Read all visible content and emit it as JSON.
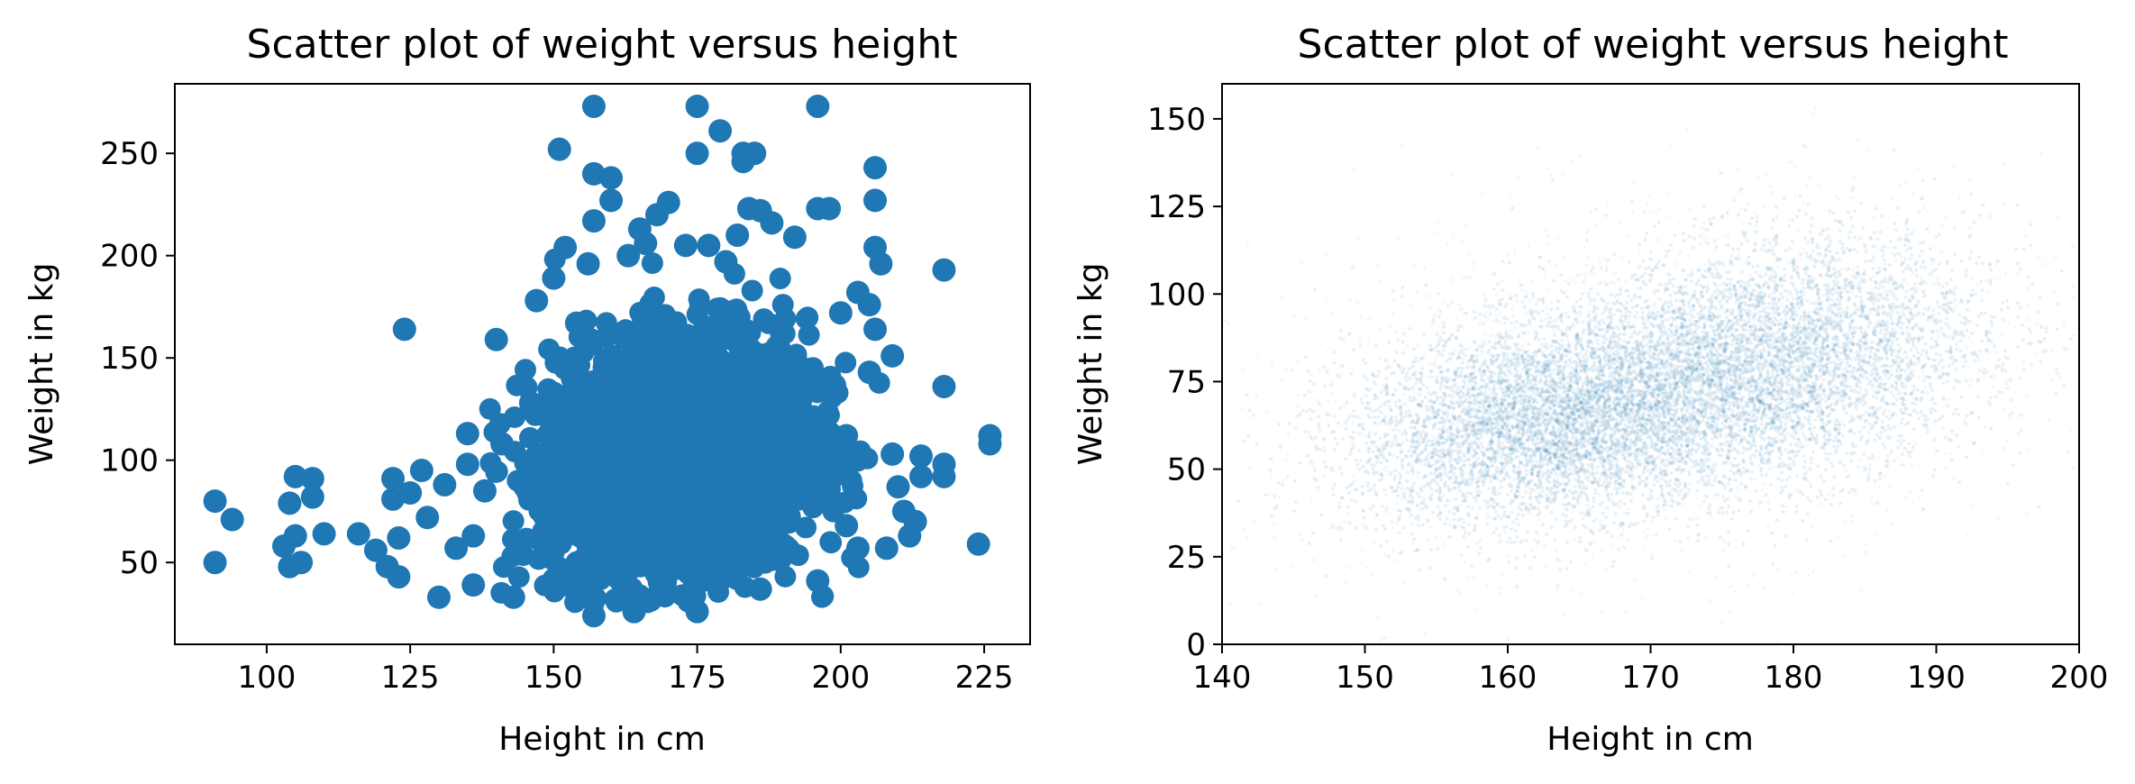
{
  "chart_data": [
    {
      "type": "scatter",
      "title": "Scatter plot of weight versus height",
      "xlabel": "Height in cm",
      "ylabel": "Weight in kg",
      "xlim": [
        84,
        233
      ],
      "ylim": [
        10,
        284
      ],
      "xticks": [
        100,
        125,
        150,
        175,
        200,
        225
      ],
      "yticks": [
        50,
        100,
        150,
        200,
        250
      ],
      "grid": false,
      "color": "#1f77b4",
      "marker": "large opaque circles",
      "points": [
        [
          91,
          80
        ],
        [
          91,
          50
        ],
        [
          94,
          71
        ],
        [
          103,
          58
        ],
        [
          104,
          48
        ],
        [
          104,
          79
        ],
        [
          105,
          92
        ],
        [
          105,
          63
        ],
        [
          106,
          50
        ],
        [
          108,
          91
        ],
        [
          108,
          82
        ],
        [
          110,
          64
        ],
        [
          116,
          64
        ],
        [
          119,
          56
        ],
        [
          121,
          48
        ],
        [
          122,
          91
        ],
        [
          122,
          81
        ],
        [
          123,
          62
        ],
        [
          123,
          43
        ],
        [
          124,
          164
        ],
        [
          125,
          84
        ],
        [
          127,
          95
        ],
        [
          128,
          72
        ],
        [
          130,
          33
        ],
        [
          131,
          88
        ],
        [
          133,
          57
        ],
        [
          135,
          113
        ],
        [
          135,
          98
        ],
        [
          136,
          63
        ],
        [
          136,
          39
        ],
        [
          138,
          85
        ],
        [
          140,
          159
        ],
        [
          141,
          108
        ],
        [
          143,
          33
        ],
        [
          146,
          128
        ],
        [
          147,
          178
        ],
        [
          149,
          121
        ],
        [
          150,
          189
        ],
        [
          151,
          252
        ],
        [
          152,
          204
        ],
        [
          152,
          145
        ],
        [
          154,
          167
        ],
        [
          156,
          196
        ],
        [
          157,
          273
        ],
        [
          157,
          240
        ],
        [
          157,
          217
        ],
        [
          157,
          24
        ],
        [
          160,
          238
        ],
        [
          160,
          227
        ],
        [
          163,
          200
        ],
        [
          164,
          26
        ],
        [
          165,
          213
        ],
        [
          166,
          206
        ],
        [
          168,
          220
        ],
        [
          170,
          226
        ],
        [
          173,
          205
        ],
        [
          175,
          273
        ],
        [
          175,
          250
        ],
        [
          175,
          26
        ],
        [
          177,
          205
        ],
        [
          179,
          261
        ],
        [
          180,
          197
        ],
        [
          182,
          210
        ],
        [
          183,
          246
        ],
        [
          183,
          250
        ],
        [
          184,
          223
        ],
        [
          185,
          250
        ],
        [
          186,
          222
        ],
        [
          186,
          37
        ],
        [
          188,
          216
        ],
        [
          192,
          209
        ],
        [
          196,
          273
        ],
        [
          196,
          223
        ],
        [
          196,
          41
        ],
        [
          198,
          223
        ],
        [
          198,
          137
        ],
        [
          200,
          172
        ],
        [
          201,
          112
        ],
        [
          201,
          68
        ],
        [
          203,
          182
        ],
        [
          203,
          57
        ],
        [
          205,
          176
        ],
        [
          205,
          143
        ],
        [
          206,
          243
        ],
        [
          206,
          227
        ],
        [
          206,
          204
        ],
        [
          206,
          164
        ],
        [
          207,
          196
        ],
        [
          208,
          57
        ],
        [
          209,
          151
        ],
        [
          209,
          103
        ],
        [
          210,
          87
        ],
        [
          211,
          75
        ],
        [
          212,
          63
        ],
        [
          213,
          70
        ],
        [
          214,
          102
        ],
        [
          214,
          92
        ],
        [
          218,
          193
        ],
        [
          218,
          136
        ],
        [
          218,
          98
        ],
        [
          218,
          92
        ],
        [
          224,
          59
        ],
        [
          226,
          112
        ],
        [
          226,
          108
        ]
      ]
    },
    {
      "type": "scatter",
      "title": "Scatter plot of weight versus height",
      "xlabel": "Height in cm",
      "ylabel": "Weight in kg",
      "xlim": [
        140,
        200
      ],
      "ylim": [
        0,
        160
      ],
      "xticks": [
        140,
        150,
        160,
        170,
        180,
        190,
        200
      ],
      "yticks": [
        0,
        25,
        50,
        75,
        100,
        125,
        150
      ],
      "grid": false,
      "color": "#1f77b4",
      "marker": "tiny translucent dots (dense cloud)",
      "density_trend": [
        {
          "x": 150,
          "y": 60
        },
        {
          "x": 160,
          "y": 62
        },
        {
          "x": 170,
          "y": 70
        },
        {
          "x": 180,
          "y": 82
        },
        {
          "x": 190,
          "y": 90
        }
      ]
    }
  ]
}
